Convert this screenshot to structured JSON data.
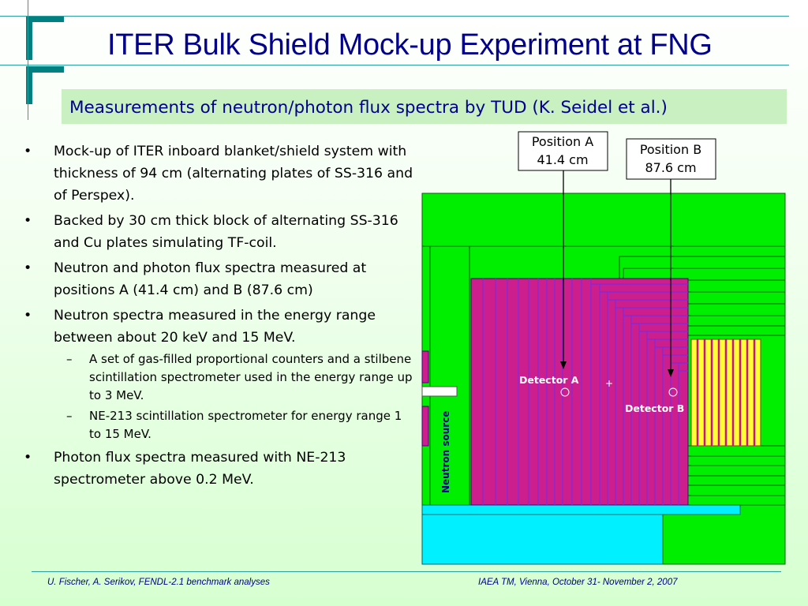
{
  "slide": {
    "title": "ITER Bulk Shield Mock-up Experiment at FNG",
    "subtitle": "Measurements of neutron/photon flux spectra by TUD (K. Seidel et al.)",
    "bullets": [
      {
        "text": "Mock-up of ITER inboard blanket/shield system with thickness of 94 cm (alternating plates of SS-316 and of Perspex)."
      },
      {
        "text": "Backed by 30 cm thick block of alternating SS-316 and Cu plates simulating TF-coil."
      },
      {
        "text": "Neutron and photon flux spectra measured at positions A (41.4 cm) and  B (87.6 cm)"
      },
      {
        "text": "Neutron spectra measured in the energy range between about 20 keV and 15 MeV.",
        "subs": [
          "A set of gas-filled proportional counters and a stilbene scintillation spectrometer used in the energy range up to 3 MeV.",
          "NE-213 scintillation spectrometer for energy range 1 to 15 MeV."
        ]
      },
      {
        "text": "Photon flux spectra  measured with NE-213 spectrometer above 0.2 MeV."
      }
    ]
  },
  "diagram": {
    "position_a": {
      "line1": "Position A",
      "line2": "41.4 cm"
    },
    "position_b": {
      "line1": "Position B",
      "line2": "87.6 cm"
    },
    "detector_a": "Detector A",
    "detector_b": "Detector B",
    "neutron_source": "Neutron source",
    "colors": {
      "green": "#00ee00",
      "magenta": "#cc1e8c",
      "purple": "#8a2be2",
      "yellow": "#ffff33",
      "cyan": "#00f0ff",
      "white_label": "#ffffff"
    }
  },
  "footer": {
    "left": "U. Fischer, A. Serikov, FENDL-2.1 benchmark analyses",
    "right": "IAEA TM, Vienna, October 31- November 2, 2007"
  }
}
